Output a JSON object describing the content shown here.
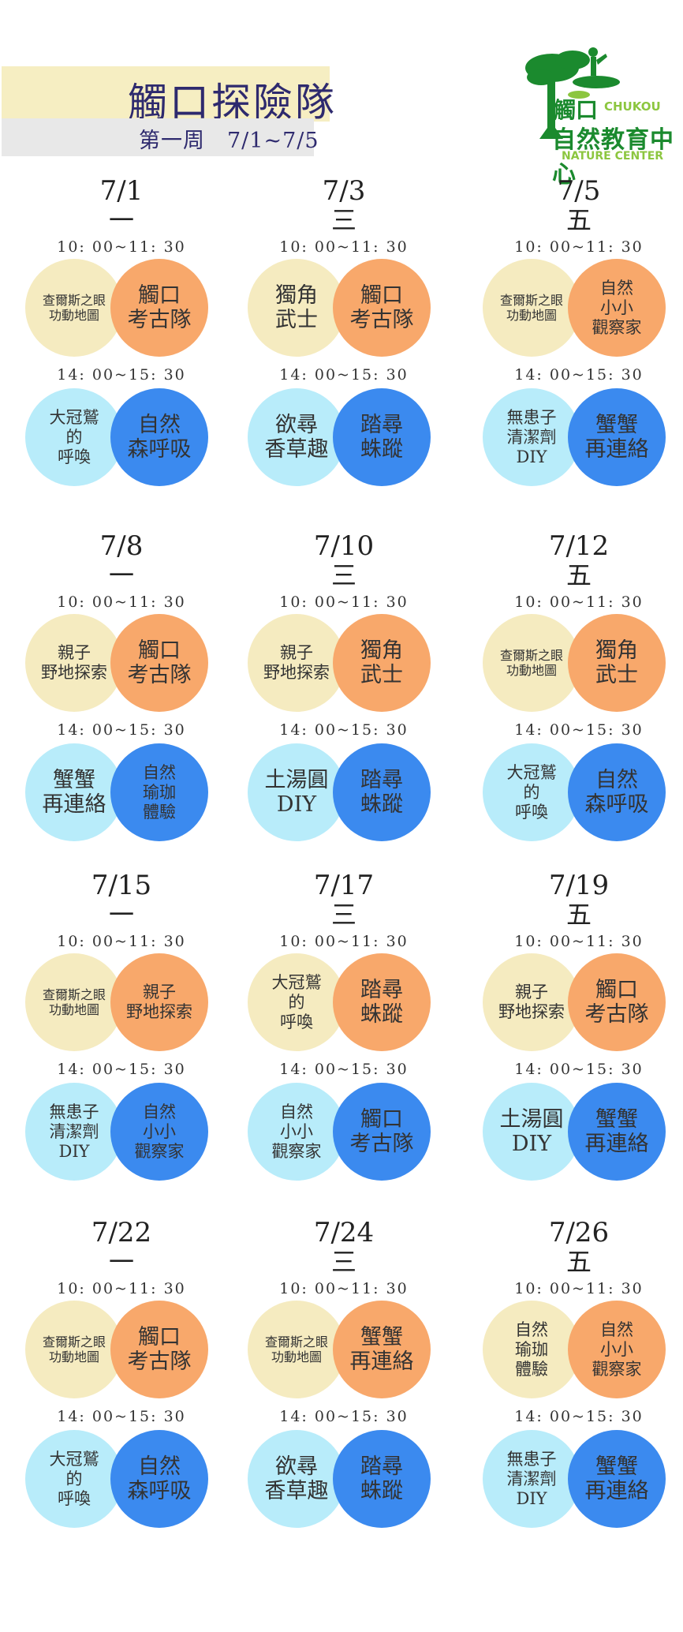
{
  "header": {
    "title": "觸口探險隊",
    "subtitle": "第一周　7/1~7/5"
  },
  "logo": {
    "chukou_cn": "觸口",
    "chukou_en": "CHUKOU",
    "center_cn": "自然教育中心",
    "center_en": "NATURE CENTER"
  },
  "colors": {
    "cream": "#f5ebc0",
    "orange": "#f8a86b",
    "light_blue": "#b8ecfa",
    "blue": "#3b8aef",
    "title_band": "#f6eec2",
    "logo_green": "#1b8a2e"
  },
  "days": [
    {
      "date": "7/1",
      "weekday": "一",
      "am_time": "10: 00~11: 30",
      "pm_time": "14: 00~15: 30",
      "am": [
        "查爾斯之眼\n功動地圖",
        "觸口\n考古隊"
      ],
      "pm": [
        "大冠鷲\n的\n呼喚",
        "自然\n森呼吸"
      ]
    },
    {
      "date": "7/3",
      "weekday": "三",
      "am_time": "10: 00~11: 30",
      "pm_time": "14: 00~15: 30",
      "am": [
        "獨角\n武士",
        "觸口\n考古隊"
      ],
      "pm": [
        "欲尋\n香草趣",
        "踏尋\n蛛蹤"
      ]
    },
    {
      "date": "7/5",
      "weekday": "五",
      "am_time": "10: 00~11: 30",
      "pm_time": "14: 00~15: 30",
      "am": [
        "查爾斯之眼\n功動地圖",
        "自然\n小小\n觀察家"
      ],
      "pm": [
        "無患子\n清潔劑\nDIY",
        "蟹蟹\n再連絡"
      ]
    },
    {
      "date": "7/8",
      "weekday": "一",
      "am_time": "10: 00~11: 30",
      "pm_time": "14: 00~15: 30",
      "am": [
        "親子\n野地探索",
        "觸口\n考古隊"
      ],
      "pm": [
        "蟹蟹\n再連絡",
        "自然\n瑜珈\n體驗"
      ]
    },
    {
      "date": "7/10",
      "weekday": "三",
      "am_time": "10: 00~11: 30",
      "pm_time": "14: 00~15: 30",
      "am": [
        "親子\n野地探索",
        "獨角\n武士"
      ],
      "pm": [
        "土湯圓\nDIY",
        "踏尋\n蛛蹤"
      ]
    },
    {
      "date": "7/12",
      "weekday": "五",
      "am_time": "10: 00~11: 30",
      "pm_time": "14: 00~15: 30",
      "am": [
        "查爾斯之眼\n功動地圖",
        "獨角\n武士"
      ],
      "pm": [
        "大冠鷲\n的\n呼喚",
        "自然\n森呼吸"
      ]
    },
    {
      "date": "7/15",
      "weekday": "一",
      "am_time": "10: 00~11: 30",
      "pm_time": "14: 00~15: 30",
      "am": [
        "查爾斯之眼\n功動地圖",
        "親子\n野地探索"
      ],
      "pm": [
        "無患子\n清潔劑\nDIY",
        "自然\n小小\n觀察家"
      ]
    },
    {
      "date": "7/17",
      "weekday": "三",
      "am_time": "10: 00~11: 30",
      "pm_time": "14: 00~15: 30",
      "am": [
        "大冠鷲\n的\n呼喚",
        "踏尋\n蛛蹤"
      ],
      "pm": [
        "自然\n小小\n觀察家",
        "觸口\n考古隊"
      ]
    },
    {
      "date": "7/19",
      "weekday": "五",
      "am_time": "10: 00~11: 30",
      "pm_time": "14: 00~15: 30",
      "am": [
        "親子\n野地探索",
        "觸口\n考古隊"
      ],
      "pm": [
        "土湯圓\nDIY",
        "蟹蟹\n再連絡"
      ]
    },
    {
      "date": "7/22",
      "weekday": "一",
      "am_time": "10: 00~11: 30",
      "pm_time": "14: 00~15: 30",
      "am": [
        "查爾斯之眼\n功動地圖",
        "觸口\n考古隊"
      ],
      "pm": [
        "大冠鷲\n的\n呼喚",
        "自然\n森呼吸"
      ]
    },
    {
      "date": "7/24",
      "weekday": "三",
      "am_time": "10: 00~11: 30",
      "pm_time": "14: 00~15: 30",
      "am": [
        "查爾斯之眼\n功動地圖",
        "蟹蟹\n再連絡"
      ],
      "pm": [
        "欲尋\n香草趣",
        "踏尋\n蛛蹤"
      ]
    },
    {
      "date": "7/26",
      "weekday": "五",
      "am_time": "10: 00~11: 30",
      "pm_time": "14: 00~15: 30",
      "am": [
        "自然\n瑜珈\n體驗",
        "自然\n小小\n觀察家"
      ],
      "pm": [
        "無患子\n清潔劑\nDIY",
        "蟹蟹\n再連絡"
      ]
    }
  ]
}
